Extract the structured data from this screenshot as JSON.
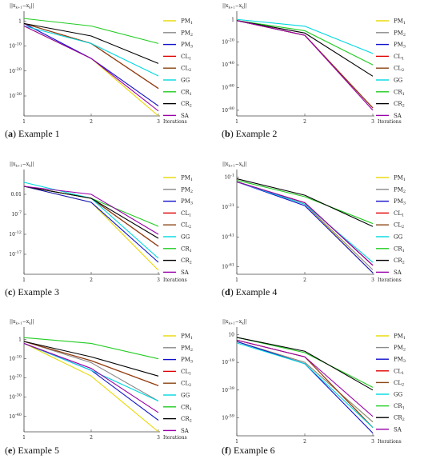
{
  "legend_labels": [
    "PM",
    "PM",
    "PM",
    "CL",
    "CL",
    "GG",
    "CR",
    "CR",
    "SA"
  ],
  "legend_subscripts": [
    "1",
    "2",
    "3",
    "1",
    "2",
    "",
    "1",
    "2",
    ""
  ],
  "series_colors": [
    "#e8d800",
    "#8a8a8a",
    "#1010cc",
    "#e00000",
    "#8b4513",
    "#00d8e0",
    "#22cc22",
    "#000000",
    "#9900aa"
  ],
  "chart_data": [
    {
      "type": "line",
      "caption_letter": "a",
      "caption_text": "Example 1",
      "ylabel": "||x_{k+1}−x_k||",
      "xlabel": "Iterations",
      "log_scale": true,
      "x": [
        1,
        2,
        3
      ],
      "yticks": [
        "1",
        "10^-10",
        "10^-20",
        "10^-30"
      ],
      "ytick_exps": [
        0,
        -10,
        -20,
        -30
      ],
      "ylim_exp": [
        -38,
        2
      ],
      "series_log10": [
        [
          -2,
          -15,
          -38
        ],
        [
          -1,
          -9,
          -27
        ],
        [
          -1,
          -15,
          -34
        ],
        [
          -1,
          -9,
          -27
        ],
        [
          -1,
          -9,
          -27
        ],
        [
          -2,
          -9,
          -22
        ],
        [
          1,
          -2,
          -9
        ],
        [
          -1,
          -6,
          -17
        ],
        [
          -2,
          -15,
          -36
        ]
      ]
    },
    {
      "type": "line",
      "caption_letter": "b",
      "caption_text": "Example 2",
      "ylabel": "||x_{k+1}−x_k||",
      "xlabel": "Iterations",
      "log_scale": true,
      "x": [
        1,
        2,
        3
      ],
      "yticks": [
        "1",
        "10^-20",
        "10^-40",
        "10^-60",
        "10^-80"
      ],
      "ytick_exps": [
        0,
        -20,
        -40,
        -60,
        -80
      ],
      "ylim_exp": [
        -85,
        3
      ],
      "series_log10": [
        [
          -1,
          -14,
          -78
        ],
        [
          -1,
          -14,
          -78
        ],
        [
          -1,
          -14,
          -78
        ],
        [
          -1,
          -14,
          -78
        ],
        [
          -1,
          -14,
          -78
        ],
        [
          0,
          -6,
          -30
        ],
        [
          -1,
          -10,
          -40
        ],
        [
          -1,
          -12,
          -50
        ],
        [
          -1,
          -14,
          -80
        ]
      ]
    },
    {
      "type": "line",
      "caption_letter": "c",
      "caption_text": "Example 3",
      "ylabel": "||x_{k+1}−x_k||",
      "xlabel": "Iterations",
      "log_scale": true,
      "x": [
        1,
        2,
        3
      ],
      "yticks": [
        "0.01",
        "10^-7",
        "10^-12",
        "10^-17"
      ],
      "ytick_exps": [
        -2,
        -7,
        -12,
        -17
      ],
      "ylim_exp": [
        -22,
        3
      ],
      "series_log10": [
        [
          0,
          -4,
          -21
        ],
        [
          0,
          -3,
          -15
        ],
        [
          0,
          -4,
          -19
        ],
        [
          0,
          -3,
          -15
        ],
        [
          0,
          -3,
          -15
        ],
        [
          1,
          -3,
          -18
        ],
        [
          0,
          -3,
          -10
        ],
        [
          0,
          -3,
          -13
        ],
        [
          0,
          -2,
          -12
        ]
      ]
    },
    {
      "type": "line",
      "caption_letter": "d",
      "caption_text": "Example 4",
      "ylabel": "||x_{k+1}−x_k||",
      "xlabel": "Iterations",
      "log_scale": true,
      "x": [
        1,
        2,
        3
      ],
      "yticks": [
        "10^-1",
        "10^-21",
        "10^-41",
        "10^-61"
      ],
      "ytick_exps": [
        -1,
        -21,
        -41,
        -61
      ],
      "ylim_exp": [
        -66,
        1
      ],
      "series_log10": [
        [
          -4,
          -19,
          -65
        ],
        [
          -4,
          -19,
          -63
        ],
        [
          -4,
          -20,
          -65
        ],
        [
          -4,
          -18,
          -60
        ],
        [
          -4,
          -18,
          -60
        ],
        [
          -4,
          -19,
          -58
        ],
        [
          -3,
          -14,
          -32
        ],
        [
          -2,
          -13,
          -34
        ],
        [
          -4,
          -18,
          -60
        ]
      ]
    },
    {
      "type": "line",
      "caption_letter": "e",
      "caption_text": "Example 5",
      "ylabel": "||x_{k+1}−x_k||",
      "xlabel": "Iterations",
      "log_scale": true,
      "x": [
        1,
        2,
        3
      ],
      "yticks": [
        "1",
        "10^-10",
        "10^-20",
        "10^-30",
        "10^-40"
      ],
      "ytick_exps": [
        0,
        -10,
        -20,
        -30,
        -40
      ],
      "ylim_exp": [
        -48,
        4
      ],
      "series_log10": [
        [
          -2,
          -19,
          -48
        ],
        [
          -1,
          -12,
          -32
        ],
        [
          -2,
          -16,
          -42
        ],
        [
          -1,
          -11,
          -24
        ],
        [
          -1,
          -11,
          -24
        ],
        [
          -2,
          -16,
          -32
        ],
        [
          1,
          -2,
          -10
        ],
        [
          -1,
          -9,
          -19
        ],
        [
          -2,
          -15,
          -38
        ]
      ]
    },
    {
      "type": "line",
      "caption_letter": "f",
      "caption_text": "Example 6",
      "ylabel": "||x_{k+1}−x_k||",
      "xlabel": "Iterations",
      "log_scale": true,
      "x": [
        1,
        2,
        3
      ],
      "yticks": [
        "10",
        "10^-19",
        "10^-39",
        "10^-59"
      ],
      "ytick_exps": [
        1,
        -19,
        -39,
        -59
      ],
      "ylim_exp": [
        -72,
        3
      ],
      "series_log10": [
        [
          -4,
          -19,
          -62
        ],
        [
          -4,
          -19,
          -62
        ],
        [
          -4,
          -20,
          -70
        ],
        [
          -3,
          -15,
          -66
        ],
        [
          -3,
          -15,
          -66
        ],
        [
          -5,
          -20,
          -66
        ],
        [
          -1,
          -12,
          -37
        ],
        [
          -1,
          -11,
          -39
        ],
        [
          -3,
          -15,
          -58
        ]
      ]
    }
  ]
}
